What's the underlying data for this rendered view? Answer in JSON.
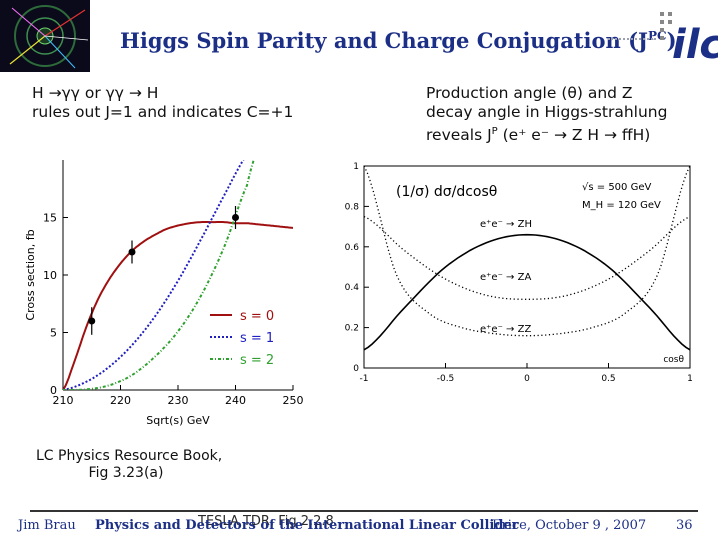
{
  "slide": {
    "title_main": "Higgs Spin Parity and Charge Conjugation (J",
    "title_sup": "PC",
    "title_close": ")",
    "logo_text": "ilc",
    "left_line1": "H →γγ or γγ → H",
    "left_line2": "rules out J=1 and indicates C=+1",
    "right_line1": "Production angle (θ) and Z",
    "right_line2": "decay angle in Higgs-strahlung",
    "right_line3": "reveals J",
    "right_line3_sup": "P",
    "right_line3_end": " (e⁺ e⁻ → Z H → ffH)",
    "ref_line1": "LC Physics Resource Book,",
    "ref_line2": "Fig 3.23(a)",
    "footer_overlay": "TESLA TDR, Fig 2.2.8",
    "footer_left": "Jim Brau",
    "footer_center": "Physics and Detectors of the International Linear Collider",
    "footer_right": "Erice, October 9 , 2007",
    "page_number": "36"
  },
  "chart_data": [
    {
      "type": "line",
      "xlabel": "Sqrt(s)  GeV",
      "ylabel": "Cross section, fb",
      "xlim": [
        210,
        250
      ],
      "ylim": [
        0,
        20
      ],
      "x_ticks": [
        210,
        220,
        230,
        240,
        250
      ],
      "y_ticks": [
        0,
        5,
        10,
        15
      ],
      "legend_position": "bottom-right",
      "series": [
        {
          "name": "s = 0",
          "color": "#a01010",
          "style": "solid",
          "x": [
            210,
            212,
            214,
            216,
            218,
            220,
            222,
            224,
            226,
            228,
            230,
            232,
            234,
            236,
            238,
            240,
            242,
            244,
            246,
            248,
            250
          ],
          "y": [
            0,
            2.5,
            5.4,
            7.8,
            9.6,
            11.0,
            12.1,
            12.9,
            13.5,
            14.0,
            14.3,
            14.5,
            14.6,
            14.6,
            14.6,
            14.5,
            14.5,
            14.4,
            14.3,
            14.2,
            14.1
          ]
        },
        {
          "name": "s = 1",
          "color": "#2020c0",
          "style": "dotted",
          "x": [
            210,
            214,
            218,
            222,
            226,
            230,
            234,
            238,
            242,
            244
          ],
          "y": [
            0,
            0.7,
            2.0,
            3.9,
            6.4,
            9.5,
            13.1,
            16.9,
            20.5,
            22.5
          ]
        },
        {
          "name": "s = 2",
          "color": "#30a030",
          "style": "dash-dot",
          "x": [
            210,
            214,
            218,
            222,
            226,
            230,
            234,
            238,
            242,
            244
          ],
          "y": [
            0,
            0.05,
            0.4,
            1.3,
            2.9,
            5.1,
            8.2,
            12.4,
            17.8,
            21
          ]
        },
        {
          "name": "",
          "color": "#000000",
          "style": "points",
          "x": [
            215,
            222,
            240
          ],
          "y": [
            6.0,
            12.0,
            15.0
          ],
          "err": [
            1.2,
            1.0,
            1.0
          ]
        }
      ]
    },
    {
      "type": "line",
      "title": "(1/σ) dσ/dcosθ",
      "xlabel": "cosθ",
      "xlim": [
        -1,
        1
      ],
      "ylim": [
        0,
        1
      ],
      "x_ticks": [
        -1,
        -0.5,
        0,
        0.5,
        1
      ],
      "y_ticks": [
        0,
        0.2,
        0.4,
        0.6,
        0.8,
        1
      ],
      "annotations": [
        "√s = 500 GeV",
        "M_H = 120 GeV",
        "e⁺e⁻ → ZH",
        "e⁺e⁻ → ZA",
        "e⁺e⁻ → ZZ"
      ],
      "series": [
        {
          "name": "e⁺e⁻ → ZH",
          "style": "solid",
          "x": [
            -1,
            -0.75,
            -0.5,
            -0.25,
            0,
            0.25,
            0.5,
            0.75,
            1
          ],
          "y": [
            0.09,
            0.3,
            0.5,
            0.62,
            0.66,
            0.62,
            0.5,
            0.3,
            0.09
          ]
        },
        {
          "name": "e⁺e⁻ → ZA",
          "style": "dotted",
          "x": [
            -1,
            -0.75,
            -0.5,
            -0.25,
            0,
            0.25,
            0.5,
            0.75,
            1
          ],
          "y": [
            0.75,
            0.58,
            0.44,
            0.36,
            0.34,
            0.36,
            0.44,
            0.58,
            0.75
          ]
        },
        {
          "name": "e⁺e⁻ → ZZ",
          "style": "dotted",
          "x": [
            -1,
            -0.8,
            -0.6,
            -0.4,
            -0.2,
            0,
            0.2,
            0.4,
            0.6,
            0.8,
            1
          ],
          "y": [
            1.0,
            0.46,
            0.27,
            0.2,
            0.17,
            0.16,
            0.17,
            0.2,
            0.27,
            0.46,
            1.0
          ]
        }
      ]
    }
  ]
}
